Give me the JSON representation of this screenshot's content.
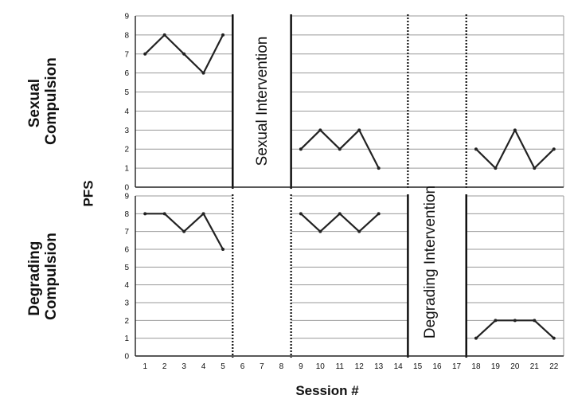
{
  "chart_data": {
    "type": "line",
    "xlabel": "Session #",
    "ylabel": "PFS",
    "x_ticks": [
      1,
      2,
      3,
      4,
      5,
      6,
      7,
      8,
      9,
      10,
      11,
      12,
      13,
      14,
      15,
      16,
      17,
      18,
      19,
      20,
      21,
      22
    ],
    "y_ticks": [
      0,
      1,
      2,
      3,
      4,
      5,
      6,
      7,
      8,
      9
    ],
    "xlim": [
      0.5,
      22.5
    ],
    "ylim": [
      0,
      9
    ],
    "grid": true,
    "phase_labels": [
      "Sexual Intervention",
      "Degrading Intervention"
    ],
    "panels": [
      {
        "row_label": [
          "Sexual",
          "Compulsion"
        ],
        "segments": [
          {
            "x": [
              1,
              2,
              3,
              4,
              5
            ],
            "y": [
              7,
              8,
              7,
              6,
              8
            ]
          },
          {
            "x": [
              9,
              10,
              11,
              12,
              13
            ],
            "y": [
              2,
              3,
              2,
              3,
              1
            ]
          },
          {
            "x": [
              18,
              19,
              20,
              21,
              22
            ],
            "y": [
              2,
              1,
              3,
              1,
              2
            ]
          }
        ]
      },
      {
        "row_label": [
          "Degrading",
          "Compulsion"
        ],
        "segments": [
          {
            "x": [
              1,
              2,
              3,
              4,
              5
            ],
            "y": [
              8,
              8,
              7,
              8,
              6
            ]
          },
          {
            "x": [
              9,
              10,
              11,
              12,
              13
            ],
            "y": [
              8,
              7,
              8,
              7,
              8
            ]
          },
          {
            "x": [
              18,
              19,
              20,
              21,
              22
            ],
            "y": [
              1,
              2,
              2,
              2,
              1
            ]
          }
        ]
      }
    ]
  }
}
